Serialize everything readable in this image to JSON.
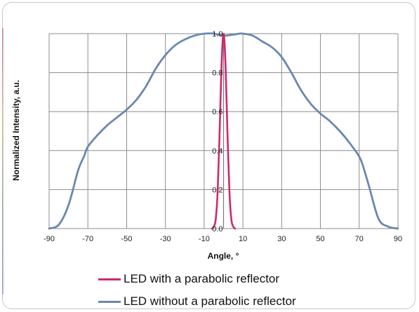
{
  "chart_data": {
    "type": "line",
    "xlabel": "Angle, °",
    "ylabel": "Normalized Intensity, a.u.",
    "xlim": [
      -90,
      90
    ],
    "ylim": [
      0,
      1.0
    ],
    "x_ticks": [
      "-90",
      "-70",
      "-50",
      "-30",
      "-10",
      "10",
      "30",
      "50",
      "70",
      "90"
    ],
    "y_ticks": [
      "0.0",
      "0.2",
      "0.4",
      "0.6",
      "0.8",
      "1.0"
    ],
    "grid": true,
    "legend_position": "bottom",
    "series": [
      {
        "name": "LED with a parabolic reflector",
        "color": "#cc2a6e",
        "x": [
          -6,
          -5,
          -4,
          -3,
          -2,
          -1,
          0,
          1,
          2,
          3,
          4,
          5,
          6
        ],
        "y": [
          0.0,
          0.01,
          0.05,
          0.2,
          0.5,
          0.85,
          1.0,
          0.85,
          0.5,
          0.2,
          0.05,
          0.01,
          0.0
        ]
      },
      {
        "name": "LED without a parabolic reflector",
        "color": "#6a88b0",
        "x": [
          -90,
          -85,
          -80,
          -75,
          -72,
          -70,
          -65,
          -60,
          -55,
          -50,
          -45,
          -40,
          -35,
          -30,
          -25,
          -20,
          -15,
          -10,
          -5,
          0,
          5,
          8,
          10,
          15,
          20,
          25,
          30,
          35,
          40,
          45,
          50,
          55,
          60,
          65,
          70,
          72,
          75,
          80,
          85,
          90
        ],
        "y": [
          0.0,
          0.02,
          0.12,
          0.3,
          0.37,
          0.42,
          0.48,
          0.53,
          0.57,
          0.61,
          0.66,
          0.73,
          0.82,
          0.89,
          0.94,
          0.97,
          0.99,
          1.0,
          1.0,
          0.99,
          0.995,
          1.0,
          1.0,
          0.99,
          0.96,
          0.93,
          0.88,
          0.8,
          0.71,
          0.64,
          0.59,
          0.55,
          0.5,
          0.44,
          0.37,
          0.32,
          0.22,
          0.05,
          0.01,
          0.0
        ]
      }
    ]
  }
}
